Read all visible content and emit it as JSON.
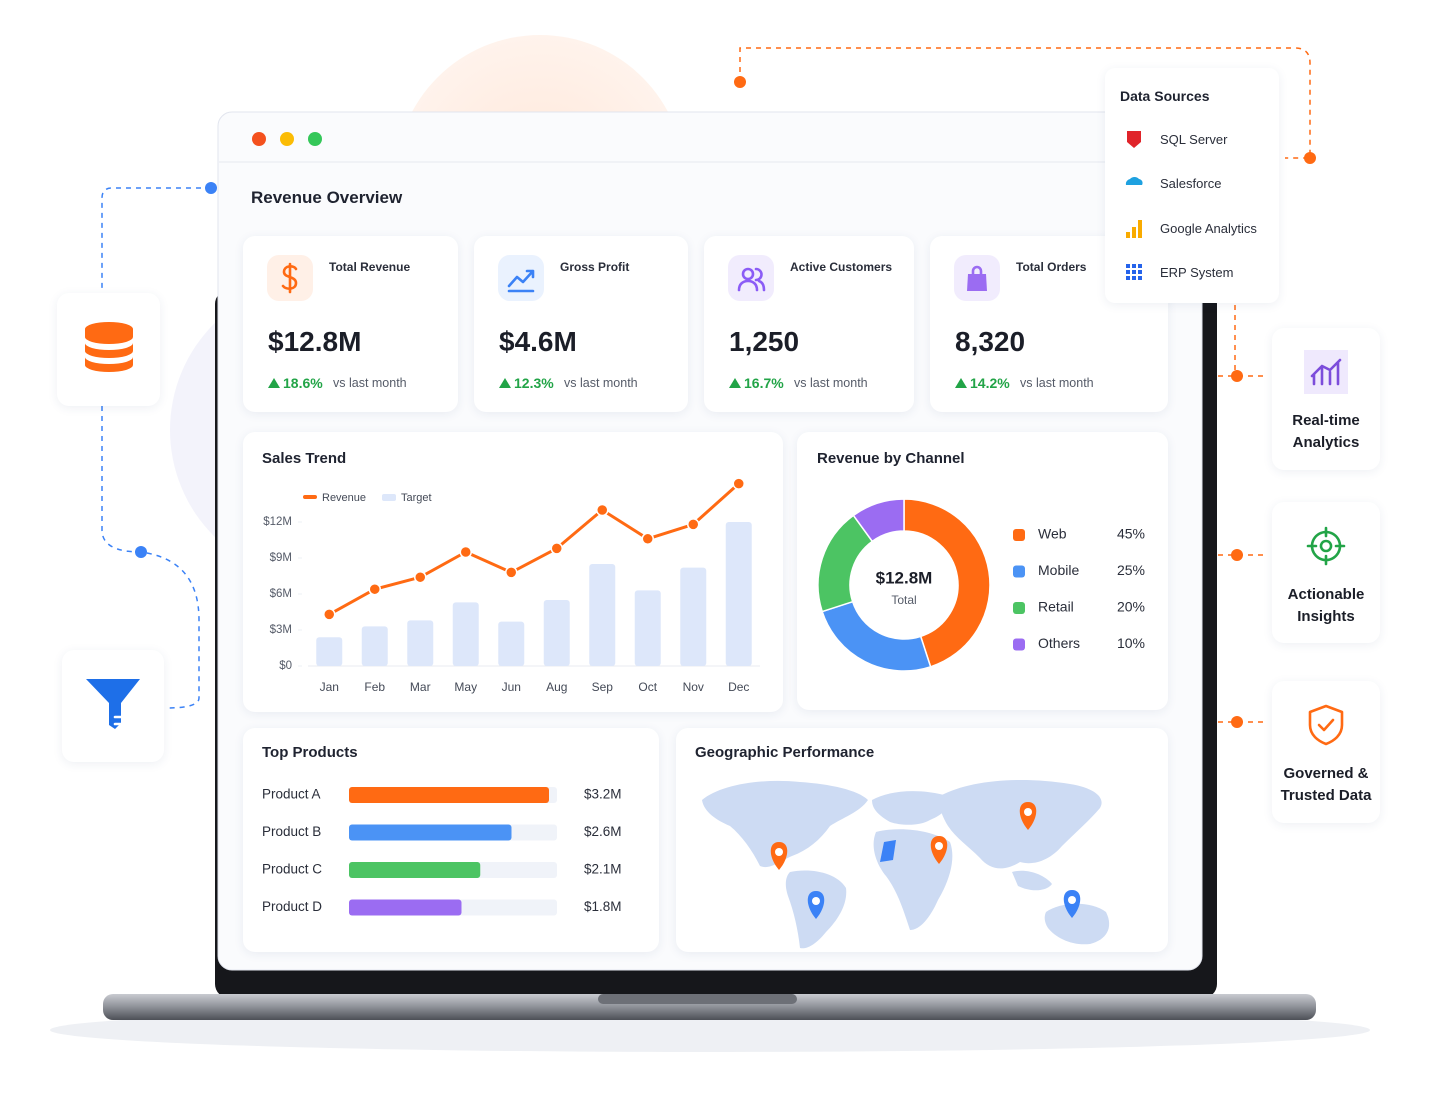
{
  "header": {
    "title": "Revenue Overview"
  },
  "kpis": [
    {
      "label": "Total Revenue",
      "value": "$12.8M",
      "change": "18.6%",
      "note": "vs last month"
    },
    {
      "label": "Gross Profit",
      "value": "$4.6M",
      "change": "12.3%",
      "note": "vs last month"
    },
    {
      "label": "Active Customers",
      "value": "1,250",
      "change": "16.7%",
      "note": "vs last month"
    },
    {
      "label": "Total Orders",
      "value": "8,320",
      "change": "14.2%",
      "note": "vs last month"
    }
  ],
  "chart_data": [
    {
      "type": "line",
      "title": "Sales Trend",
      "categories": [
        "Jan",
        "Feb",
        "Mar",
        "May",
        "Jun",
        "Aug",
        "Sep",
        "Oct",
        "Nov",
        "Dec"
      ],
      "series": [
        {
          "name": "Revenue",
          "type": "line",
          "color": "#ff6a13",
          "values": [
            4.3,
            6.4,
            7.4,
            9.5,
            7.8,
            9.8,
            13.0,
            10.6,
            11.8,
            15.2
          ]
        },
        {
          "name": "Target",
          "type": "bar",
          "color": "#dde7fa",
          "values": [
            2.4,
            3.3,
            3.8,
            5.3,
            3.7,
            5.5,
            8.5,
            6.3,
            8.2,
            12.0
          ]
        }
      ],
      "ylim": [
        0,
        15.5
      ],
      "yticks": [
        {
          "value": 0,
          "label": "$0"
        },
        {
          "value": 3,
          "label": "$3M"
        },
        {
          "value": 6,
          "label": "$6M"
        },
        {
          "value": 9,
          "label": "$9M"
        },
        {
          "value": 12,
          "label": "$12M"
        }
      ]
    },
    {
      "type": "donut",
      "title": "Revenue by Channel",
      "center_value": "$12.8M",
      "center_label": "Total",
      "categories": [
        "Web",
        "Mobile",
        "Retail",
        "Others"
      ],
      "values": [
        45,
        25,
        20,
        10
      ],
      "value_labels": [
        "45%",
        "25%",
        "20%",
        "10%"
      ],
      "colors": [
        "#ff6a13",
        "#4b93f5",
        "#4cc463",
        "#9b6cf2"
      ]
    },
    {
      "type": "barh",
      "title": "Top Products",
      "categories": [
        "Product A",
        "Product B",
        "Product C",
        "Product D"
      ],
      "values": [
        3.2,
        2.6,
        2.1,
        1.8
      ],
      "value_labels": [
        "$3.2M",
        "$2.6M",
        "$2.1M",
        "$1.8M"
      ],
      "colors": [
        "#ff6a13",
        "#4b93f5",
        "#4cc463",
        "#9b6cf2"
      ]
    }
  ],
  "geo": {
    "title": "Geographic Performance"
  },
  "data_sources": {
    "title": "Data Sources",
    "items": [
      "SQL Server",
      "Salesforce",
      "Google Analytics",
      "ERP System"
    ]
  },
  "features": [
    "Real-time Analytics",
    "Actionable Insights",
    "Governed & Trusted Data"
  ]
}
